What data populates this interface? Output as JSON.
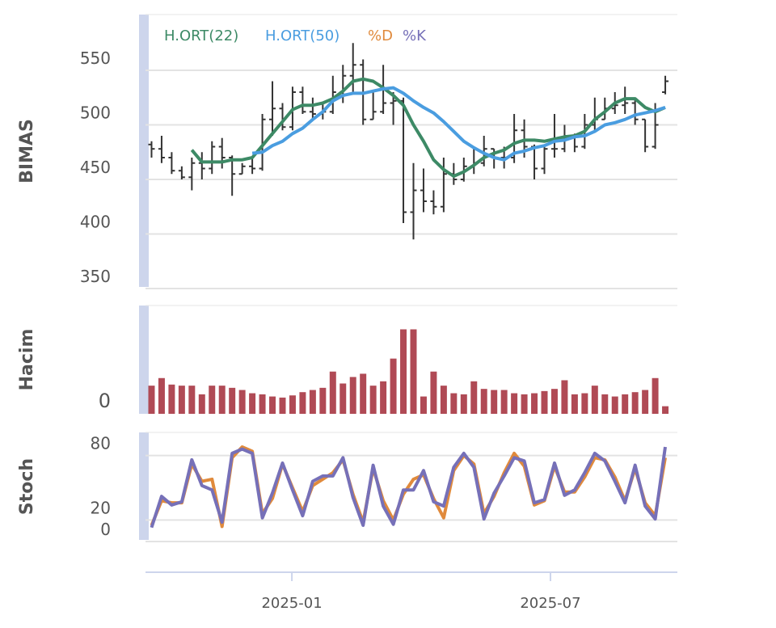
{
  "chart_data": [
    {
      "type": "ohlc",
      "y_axis_label": "BIMAS",
      "color": "#333333",
      "x": [
        0,
        1,
        2,
        3,
        4,
        5,
        6,
        7,
        8,
        9,
        10,
        11,
        12,
        13,
        14,
        15,
        16,
        17,
        18,
        19,
        20,
        21,
        22,
        23,
        24,
        25,
        26,
        27,
        28,
        29,
        30,
        31,
        32,
        33,
        34,
        35,
        36,
        37,
        38,
        39,
        40,
        41,
        42,
        43,
        44,
        45,
        46,
        47,
        48,
        49,
        50,
        51
      ],
      "open": [
        482,
        478,
        470,
        458,
        452,
        465,
        460,
        480,
        470,
        455,
        462,
        460,
        505,
        515,
        498,
        530,
        512,
        510,
        512,
        530,
        545,
        555,
        505,
        512,
        520,
        522,
        420,
        440,
        430,
        425,
        455,
        450,
        462,
        465,
        478,
        470,
        470,
        495,
        480,
        460,
        478,
        478,
        490,
        480,
        500,
        505,
        515,
        518,
        520,
        505,
        480,
        530
      ],
      "high": [
        485,
        490,
        475,
        462,
        470,
        475,
        485,
        488,
        472,
        465,
        470,
        510,
        540,
        520,
        535,
        535,
        525,
        520,
        545,
        555,
        575,
        560,
        530,
        555,
        530,
        525,
        465,
        460,
        440,
        470,
        465,
        470,
        480,
        490,
        478,
        480,
        510,
        505,
        482,
        480,
        510,
        500,
        492,
        510,
        525,
        525,
        530,
        535,
        525,
        505,
        520,
        545
      ],
      "low": [
        470,
        465,
        455,
        450,
        440,
        450,
        455,
        460,
        435,
        455,
        455,
        458,
        490,
        495,
        495,
        510,
        505,
        505,
        510,
        520,
        530,
        500,
        505,
        510,
        500,
        410,
        395,
        420,
        418,
        420,
        445,
        448,
        455,
        462,
        460,
        460,
        465,
        470,
        450,
        455,
        470,
        475,
        475,
        478,
        495,
        505,
        510,
        510,
        500,
        475,
        478,
        528
      ],
      "close": [
        478,
        470,
        458,
        452,
        465,
        460,
        480,
        470,
        455,
        462,
        460,
        505,
        515,
        498,
        530,
        512,
        510,
        512,
        530,
        545,
        555,
        505,
        512,
        520,
        522,
        420,
        440,
        430,
        425,
        455,
        450,
        462,
        465,
        478,
        470,
        470,
        495,
        480,
        460,
        478,
        478,
        490,
        480,
        500,
        505,
        515,
        518,
        520,
        505,
        480,
        500,
        540
      ],
      "series": [
        {
          "name": "H.ORT(22)",
          "color": "#3d8a66",
          "values": [
            null,
            null,
            null,
            null,
            477,
            466,
            466,
            466,
            468,
            468,
            470,
            481,
            492,
            503,
            514,
            518,
            518,
            520,
            524,
            531,
            540,
            542,
            540,
            534,
            527,
            518,
            500,
            485,
            468,
            459,
            453,
            457,
            463,
            470,
            474,
            477,
            483,
            486,
            486,
            485,
            487,
            489,
            490,
            494,
            505,
            512,
            520,
            524,
            524,
            516,
            512,
            516
          ]
        },
        {
          "name": "H.ORT(50)",
          "color": "#4a9de0",
          "values": [
            null,
            null,
            null,
            null,
            null,
            null,
            null,
            null,
            null,
            null,
            474,
            475,
            481,
            485,
            492,
            497,
            505,
            512,
            522,
            527,
            529,
            529,
            531,
            533,
            534,
            529,
            522,
            516,
            511,
            503,
            494,
            485,
            479,
            474,
            470,
            468,
            474,
            476,
            479,
            481,
            485,
            486,
            489,
            490,
            494,
            500,
            502,
            505,
            509,
            511,
            513,
            516
          ]
        }
      ],
      "xlim": [
        -0.6,
        52.2
      ],
      "ylim": [
        350,
        600
      ],
      "yticks": [
        350,
        400,
        450,
        500,
        550
      ],
      "grid": true
    },
    {
      "type": "bar",
      "y_axis_label": "Hacim",
      "color": "#b04a55",
      "x": [
        0,
        1,
        2,
        3,
        4,
        5,
        6,
        7,
        8,
        9,
        10,
        11,
        12,
        13,
        14,
        15,
        16,
        17,
        18,
        19,
        20,
        21,
        22,
        23,
        24,
        25,
        26,
        27,
        28,
        29,
        30,
        31,
        32,
        33,
        34,
        35,
        36,
        37,
        38,
        39,
        40,
        41,
        42,
        43,
        44,
        45,
        46,
        47,
        48,
        49,
        50,
        51
      ],
      "values": [
        26,
        33,
        27,
        26,
        26,
        18,
        26,
        26,
        24,
        22,
        19,
        18,
        16,
        15,
        17,
        20,
        22,
        24,
        39,
        28,
        34,
        37,
        26,
        30,
        51,
        78,
        78,
        16,
        39,
        26,
        19,
        18,
        30,
        23,
        22,
        22,
        19,
        18,
        19,
        21,
        23,
        31,
        18,
        19,
        26,
        18,
        16,
        18,
        20,
        22,
        33,
        7
      ],
      "xlim": [
        -0.6,
        52.2
      ],
      "ylim": [
        0,
        100
      ],
      "yticks": [
        0
      ]
    },
    {
      "type": "line",
      "y_axis_label": "Stoch",
      "x": [
        0,
        1,
        2,
        3,
        4,
        5,
        6,
        7,
        8,
        9,
        10,
        11,
        12,
        13,
        14,
        15,
        16,
        17,
        18,
        19,
        20,
        21,
        22,
        23,
        24,
        25,
        26,
        27,
        28,
        29,
        30,
        31,
        32,
        33,
        34,
        35,
        36,
        37,
        38,
        39,
        40,
        41,
        42,
        43,
        44,
        45,
        46,
        47,
        48,
        49,
        50,
        51
      ],
      "series": [
        {
          "name": "%D",
          "color": "#e08a3c",
          "values": [
            15,
            38,
            36,
            36,
            72,
            56,
            58,
            14,
            78,
            88,
            84,
            26,
            40,
            72,
            50,
            28,
            52,
            58,
            64,
            76,
            44,
            18,
            68,
            38,
            20,
            44,
            58,
            62,
            40,
            22,
            66,
            80,
            72,
            26,
            42,
            64,
            82,
            70,
            34,
            38,
            70,
            46,
            46,
            60,
            78,
            76,
            60,
            38,
            68,
            36,
            24,
            78
          ]
        },
        {
          "name": "%K",
          "color": "#7670b8",
          "values": [
            13,
            42,
            34,
            37,
            76,
            52,
            48,
            18,
            82,
            86,
            82,
            22,
            45,
            73,
            48,
            24,
            56,
            61,
            61,
            78,
            41,
            15,
            71,
            33,
            16,
            48,
            48,
            66,
            37,
            33,
            69,
            82,
            69,
            21,
            45,
            61,
            78,
            75,
            36,
            39,
            73,
            43,
            48,
            64,
            82,
            75,
            56,
            36,
            71,
            33,
            21,
            88
          ]
        }
      ],
      "xlim": [
        -0.6,
        52.2
      ],
      "ylim": [
        0,
        100
      ],
      "yticks": [
        0,
        20,
        80
      ],
      "grid": true,
      "xticks": [
        {
          "value": 13.93,
          "label": "2025-01"
        },
        {
          "value": 39.6,
          "label": "2025-07"
        }
      ]
    }
  ]
}
